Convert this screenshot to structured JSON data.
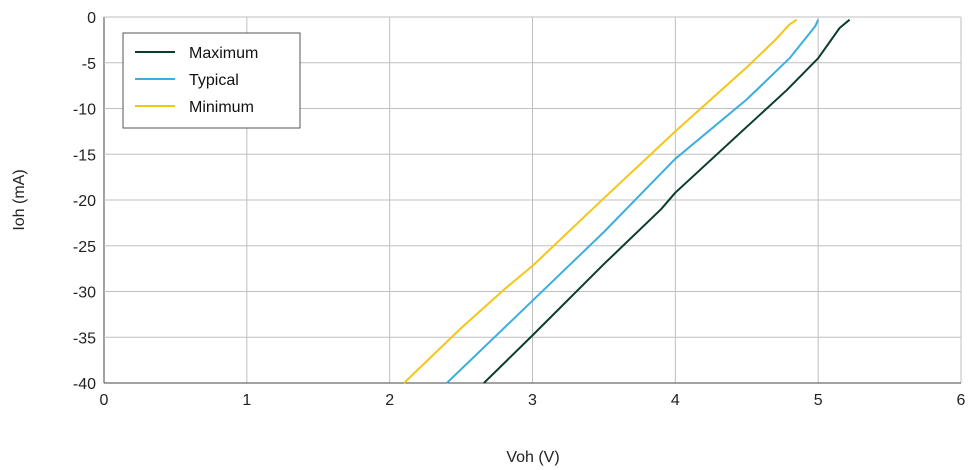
{
  "chart_data": {
    "type": "line",
    "xlabel": "Voh (V)",
    "ylabel": "Ioh (mA)",
    "xlim": [
      0,
      6
    ],
    "ylim": [
      -40,
      0
    ],
    "xticks": [
      0,
      1,
      2,
      3,
      4,
      5,
      6
    ],
    "yticks": [
      0,
      -5,
      -10,
      -15,
      -20,
      -25,
      -30,
      -35,
      -40
    ],
    "grid": true,
    "legend_position": "top-left",
    "series": [
      {
        "name": "Maximum",
        "color": "#0b3d2e",
        "x": [
          2.66,
          3.0,
          3.5,
          3.9,
          4.0,
          4.5,
          4.78,
          5.0,
          5.15,
          5.22
        ],
        "y": [
          -40,
          -34.8,
          -27.0,
          -21.0,
          -19.2,
          -12.0,
          -8.0,
          -4.5,
          -1.2,
          -0.3
        ]
      },
      {
        "name": "Typical",
        "color": "#3aaee0",
        "x": [
          2.4,
          3.0,
          3.5,
          4.0,
          4.5,
          4.8,
          4.98,
          5.0
        ],
        "y": [
          -40,
          -31.0,
          -23.5,
          -15.5,
          -9.0,
          -4.5,
          -1.0,
          -0.3
        ]
      },
      {
        "name": "Minimum",
        "color": "#f5c518",
        "x": [
          2.1,
          2.5,
          2.8,
          3.0,
          3.5,
          4.0,
          4.5,
          4.7,
          4.8,
          4.85
        ],
        "y": [
          -40,
          -34.0,
          -29.8,
          -27.2,
          -19.8,
          -12.5,
          -5.5,
          -2.5,
          -0.8,
          -0.3
        ]
      }
    ]
  }
}
